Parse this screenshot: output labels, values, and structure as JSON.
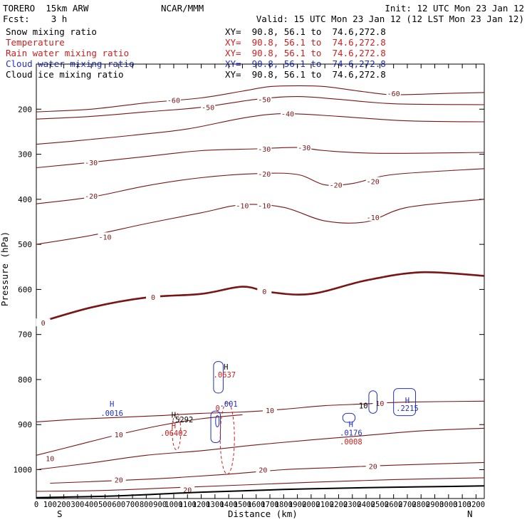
{
  "header": {
    "model": "TORERO  15km ARW",
    "center": "NCAR/MMM",
    "init": "Init: 12 UTC Mon 23 Jan 12",
    "fcst": "Fcst:    3 h",
    "valid": "Valid: 15 UTC Mon 23 Jan 12 (12 LST Mon 23 Jan 12)"
  },
  "fields": [
    {
      "name": "Snow mixing ratio",
      "color": "#000000"
    },
    {
      "name": "Temperature",
      "color": "#cc2020"
    },
    {
      "name": "Rain water mixing ratio",
      "color": "#cc2020"
    },
    {
      "name": "Cloud water mixing ratio",
      "color": "#2030c0"
    },
    {
      "name": "Cloud ice mixing ratio",
      "color": "#000000"
    }
  ],
  "cross_section_label": "XY=  90.8, 56.1 to  74.6,272.8",
  "chart_data": {
    "type": "line",
    "xlabel": "Distance (km)",
    "ylabel": "Pressure (hPa)",
    "x_end_labels": {
      "left": "S",
      "right": "N"
    },
    "xlim": [
      0,
      3260
    ],
    "ylim": [
      1064,
      100
    ],
    "x_ticks": [
      0,
      100,
      200,
      300,
      400,
      500,
      600,
      700,
      800,
      900,
      1000,
      1100,
      1200,
      1300,
      1400,
      1500,
      1600,
      1700,
      1800,
      1900,
      2000,
      2100,
      2200,
      2300,
      2400,
      2500,
      2600,
      2700,
      2800,
      2900,
      3000,
      3100,
      3200
    ],
    "y_ticks": [
      200,
      300,
      400,
      500,
      600,
      700,
      800,
      900,
      1000
    ],
    "temperature_contours": [
      {
        "level": -60,
        "points": [
          [
            0,
            206
          ],
          [
            400,
            200
          ],
          [
            800,
            186
          ],
          [
            1200,
            175
          ],
          [
            1500,
            160
          ],
          [
            1700,
            150
          ],
          [
            1900,
            148
          ],
          [
            2100,
            150
          ],
          [
            2400,
            162
          ],
          [
            2600,
            168
          ],
          [
            3000,
            165
          ],
          [
            3260,
            163
          ]
        ],
        "labels": [
          [
            1000,
            180,
            "-60"
          ],
          [
            2600,
            165,
            "-60"
          ]
        ]
      },
      {
        "level": -50,
        "points": [
          [
            0,
            222
          ],
          [
            400,
            216
          ],
          [
            800,
            206
          ],
          [
            1200,
            196
          ],
          [
            1600,
            178
          ],
          [
            1900,
            172
          ],
          [
            2200,
            178
          ],
          [
            2600,
            188
          ],
          [
            3260,
            190
          ]
        ],
        "labels": [
          [
            1250,
            196,
            "-50"
          ],
          [
            1660,
            178,
            "-50"
          ]
        ]
      },
      {
        "level": -40,
        "points": [
          [
            0,
            278
          ],
          [
            300,
            270
          ],
          [
            700,
            258
          ],
          [
            1100,
            244
          ],
          [
            1500,
            220
          ],
          [
            1800,
            210
          ],
          [
            2200,
            216
          ],
          [
            2700,
            226
          ],
          [
            3260,
            228
          ]
        ],
        "labels": [
          [
            1830,
            210,
            "-40"
          ]
        ]
      },
      {
        "level": -30,
        "points": [
          [
            0,
            330
          ],
          [
            400,
            318
          ],
          [
            800,
            305
          ],
          [
            1200,
            292
          ],
          [
            1600,
            288
          ],
          [
            1900,
            285
          ],
          [
            2100,
            292
          ],
          [
            2500,
            298
          ],
          [
            3260,
            296
          ]
        ],
        "labels": [
          [
            400,
            318,
            "-30"
          ],
          [
            1660,
            288,
            "-30"
          ],
          [
            1950,
            285,
            "-30"
          ]
        ]
      },
      {
        "level": -20,
        "points": [
          [
            0,
            410
          ],
          [
            400,
            395
          ],
          [
            800,
            370
          ],
          [
            1200,
            352
          ],
          [
            1600,
            343
          ],
          [
            1900,
            345
          ],
          [
            2100,
            368
          ],
          [
            2300,
            365
          ],
          [
            2600,
            345
          ],
          [
            3260,
            332
          ]
        ],
        "labels": [
          [
            400,
            392,
            "-20"
          ],
          [
            1660,
            343,
            "-20"
          ],
          [
            2180,
            368,
            "-20"
          ],
          [
            2450,
            360,
            "-20"
          ]
        ]
      },
      {
        "level": -10,
        "points": [
          [
            0,
            500
          ],
          [
            400,
            480
          ],
          [
            800,
            454
          ],
          [
            1200,
            430
          ],
          [
            1500,
            412
          ],
          [
            1800,
            418
          ],
          [
            2100,
            448
          ],
          [
            2400,
            450
          ],
          [
            2700,
            418
          ],
          [
            3260,
            400
          ]
        ],
        "labels": [
          [
            500,
            483,
            "-10"
          ],
          [
            1500,
            414,
            "-10"
          ],
          [
            1660,
            414,
            "-10"
          ],
          [
            2450,
            440,
            "-10"
          ]
        ]
      },
      {
        "level": 0,
        "bold": true,
        "points": [
          [
            0,
            675
          ],
          [
            400,
            640
          ],
          [
            800,
            618
          ],
          [
            1200,
            610
          ],
          [
            1500,
            594
          ],
          [
            1700,
            606
          ],
          [
            2000,
            610
          ],
          [
            2400,
            580
          ],
          [
            2800,
            562
          ],
          [
            3260,
            570
          ]
        ],
        "labels": [
          [
            50,
            674,
            "0"
          ],
          [
            850,
            617,
            "0"
          ],
          [
            1660,
            604,
            "0"
          ]
        ]
      },
      {
        "level": 10,
        "points": [
          [
            0,
            894
          ],
          [
            300,
            888
          ],
          [
            600,
            884
          ],
          [
            900,
            880
          ],
          [
            1200,
            875
          ],
          [
            1500,
            872
          ],
          [
            1800,
            866
          ],
          [
            2100,
            858
          ],
          [
            2400,
            854
          ],
          [
            2700,
            850
          ],
          [
            3260,
            848
          ]
        ],
        "labels": [
          [
            1700,
            868,
            "10"
          ],
          [
            2500,
            852,
            "10"
          ]
        ]
      },
      {
        "level": 10,
        "points": [
          [
            0,
            968
          ],
          [
            300,
            945
          ],
          [
            600,
            922
          ],
          [
            900,
            902
          ],
          [
            1200,
            887
          ],
          [
            1500,
            878
          ]
        ],
        "labels": [
          [
            600,
            922,
            "10"
          ]
        ]
      },
      {
        "level": 10,
        "points": [
          [
            0,
            1000
          ],
          [
            400,
            985
          ],
          [
            800,
            968
          ],
          [
            1200,
            958
          ],
          [
            1600,
            945
          ],
          [
            2000,
            934
          ],
          [
            2400,
            924
          ],
          [
            2800,
            914
          ],
          [
            3260,
            908
          ]
        ],
        "labels": [
          [
            100,
            975,
            "10"
          ]
        ]
      },
      {
        "level": 20,
        "points": [
          [
            100,
            1030
          ],
          [
            600,
            1024
          ],
          [
            1000,
            1018
          ],
          [
            1400,
            1010
          ],
          [
            1800,
            1000
          ],
          [
            2200,
            995
          ],
          [
            2600,
            990
          ],
          [
            3260,
            984
          ]
        ],
        "labels": [
          [
            600,
            1022,
            "20"
          ],
          [
            1650,
            1000,
            "20"
          ],
          [
            2450,
            992,
            "20"
          ]
        ]
      },
      {
        "level": 20,
        "points": [
          [
            0,
            1048
          ],
          [
            500,
            1046
          ],
          [
            1000,
            1040
          ],
          [
            1500,
            1034
          ],
          [
            2000,
            1028
          ],
          [
            2600,
            1022
          ],
          [
            3260,
            1018
          ]
        ],
        "labels": [
          [
            1100,
            1044,
            "20"
          ]
        ]
      }
    ],
    "surface": [
      [
        0,
        1062
      ],
      [
        600,
        1058
      ],
      [
        1200,
        1050
      ],
      [
        1800,
        1044
      ],
      [
        2400,
        1040
      ],
      [
        3260,
        1036
      ]
    ],
    "blue_labels": [
      {
        "x": 550,
        "p": 860,
        "text": "H"
      },
      {
        "x": 550,
        "p": 881,
        "text": ".0016"
      },
      {
        "x": 1400,
        "p": 860,
        "text": ".001"
      },
      {
        "x": 2290,
        "p": 905,
        "text": "H"
      },
      {
        "x": 2290,
        "p": 924,
        "text": ".0176"
      },
      {
        "x": 2700,
        "p": 852,
        "text": "H"
      },
      {
        "x": 2700,
        "p": 870,
        "text": ".2215"
      }
    ],
    "red_labels": [
      {
        "x": 1000,
        "p": 908,
        "text": "H"
      },
      {
        "x": 1000,
        "p": 925,
        "text": ".06402"
      },
      {
        "x": 1370,
        "p": 795,
        "text": ".0637"
      },
      {
        "x": 2290,
        "p": 944,
        "text": ".0008"
      },
      {
        "x": 1320,
        "p": 870,
        "text": "0"
      }
    ],
    "black_labels": [
      {
        "x": 1000,
        "p": 885,
        "text": "H"
      },
      {
        "x": 1060,
        "p": 895,
        "text": ".5292"
      },
      {
        "x": 1380,
        "p": 778,
        "text": "H"
      },
      {
        "x": 2380,
        "p": 864,
        "text": "10"
      }
    ]
  }
}
